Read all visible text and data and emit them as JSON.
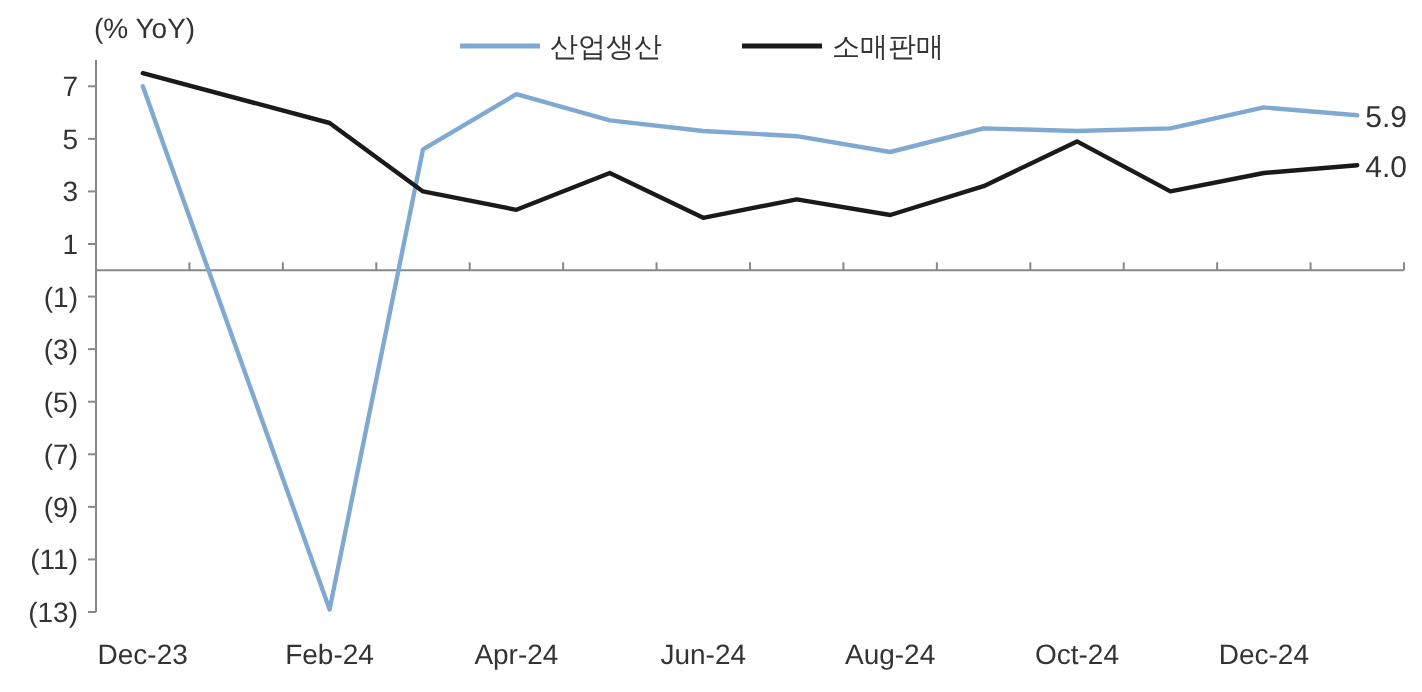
{
  "chart_data": {
    "type": "line",
    "ylabel": "(% YoY)",
    "x": [
      "2023-12",
      "2024-02",
      "2024-03",
      "2024-04",
      "2024-05",
      "2024-06",
      "2024-07",
      "2024-08",
      "2024-09",
      "2024-10",
      "2024-11",
      "2024-12",
      "2025-01"
    ],
    "series": [
      {
        "name": "산업생산",
        "color": "#7fa9d1",
        "values": [
          7.0,
          -12.9,
          4.6,
          6.7,
          5.7,
          5.3,
          5.1,
          4.5,
          5.4,
          5.3,
          5.4,
          6.2,
          5.9
        ],
        "value_labels": [
          null,
          null,
          null,
          null,
          null,
          null,
          null,
          null,
          null,
          null,
          null,
          null,
          "5.9"
        ]
      },
      {
        "name": "소매판매",
        "color": "#1a1a1a",
        "values": [
          7.5,
          5.6,
          3.0,
          2.3,
          3.7,
          2.0,
          2.7,
          2.1,
          3.2,
          4.9,
          3.0,
          3.7,
          4.0
        ],
        "value_labels": [
          null,
          null,
          null,
          null,
          null,
          null,
          null,
          null,
          null,
          null,
          null,
          null,
          "4.0"
        ]
      }
    ],
    "xlim": [
      "2023-11-16",
      "2025-01-16"
    ],
    "xticks": [
      {
        "value": "2023-12",
        "label": "Dec-23"
      },
      {
        "value": "2024-02",
        "label": "Feb-24"
      },
      {
        "value": "2024-04",
        "label": "Apr-24"
      },
      {
        "value": "2024-06",
        "label": "Jun-24"
      },
      {
        "value": "2024-08",
        "label": "Aug-24"
      },
      {
        "value": "2024-10",
        "label": "Oct-24"
      },
      {
        "value": "2024-12",
        "label": "Dec-24"
      },
      {
        "value": "2023-12-16",
        "label": null
      },
      {
        "value": "2024-01-16",
        "label": null
      },
      {
        "value": "2024-02-16",
        "label": null
      },
      {
        "value": "2024-03-16",
        "label": null
      },
      {
        "value": "2024-04-16",
        "label": null
      },
      {
        "value": "2024-05-16",
        "label": null
      },
      {
        "value": "2024-06-16",
        "label": null
      },
      {
        "value": "2024-07-16",
        "label": null
      },
      {
        "value": "2024-08-16",
        "label": null
      },
      {
        "value": "2024-09-16",
        "label": null
      },
      {
        "value": "2024-10-16",
        "label": null
      },
      {
        "value": "2024-11-16",
        "label": null
      },
      {
        "value": "2024-12-16",
        "label": null
      },
      {
        "value": "2025-01-16",
        "label": null
      }
    ],
    "ylim": [
      -13,
      8
    ],
    "yticks": [
      7,
      5,
      3,
      1,
      {
        "value": -1,
        "label": "(1)"
      },
      {
        "value": -3,
        "label": "(3)"
      },
      {
        "value": -5,
        "label": "(5)"
      },
      {
        "value": -7,
        "label": "(7)"
      },
      {
        "value": -9,
        "label": "(9)"
      },
      {
        "value": -11,
        "label": "(11)"
      },
      {
        "value": -13,
        "label": "(13)"
      }
    ],
    "grid": false,
    "legend": "top",
    "marker": "none",
    "line_style": "solid"
  }
}
